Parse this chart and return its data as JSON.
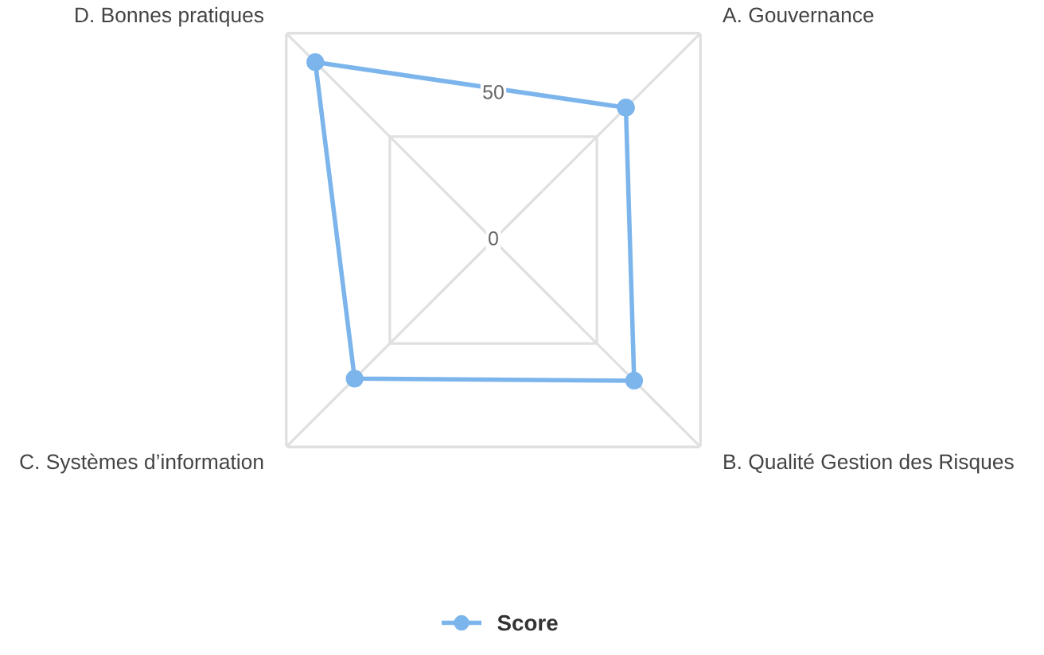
{
  "chart_data": {
    "type": "radar",
    "categories": [
      "A. Gouvernance",
      "B. Qualité Gestion des Risques",
      "C. Systèmes d’information",
      "D. Bonnes pratiques"
    ],
    "series": [
      {
        "name": "Score",
        "color": "#7cb5ec",
        "values": [
          64,
          68,
          67,
          86
        ]
      }
    ],
    "ylim": [
      0,
      100
    ],
    "yticks": [
      0,
      50
    ],
    "grid": true,
    "legend": "bottom",
    "marker": "circle",
    "line_style": "solid"
  }
}
